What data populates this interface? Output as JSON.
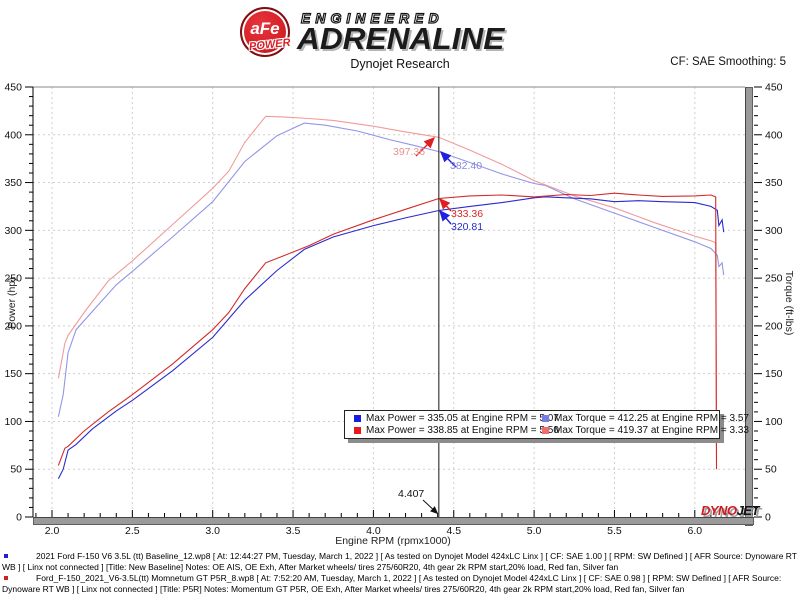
{
  "header": {
    "logo": {
      "badge": "aFe",
      "power": "POWER",
      "line1": "ENGINEERED",
      "line2": "ADRENALINE"
    },
    "title": "Dynojet Research",
    "smoothing": "CF: SAE Smoothing: 5"
  },
  "chart_data": {
    "type": "line",
    "xlabel": "Engine RPM (rpmx1000)",
    "ylabel_left": "Power (hp)",
    "ylabel_right": "Torque (ft-lbs)",
    "xlim": [
      1.88,
      6.31
    ],
    "ylim": [
      0,
      450
    ],
    "x_tick_major": 0.5,
    "x_tick_minor": 0.1,
    "y_tick_major": 50,
    "y_tick_minor": 10,
    "grid": "dotted",
    "cursor": {
      "rpm": 4.407,
      "label": "4.407"
    },
    "series": [
      {
        "name": "torque-baseline",
        "axis": "torque",
        "color": "#9495e8",
        "points": [
          [
            2.04,
            105
          ],
          [
            2.07,
            128
          ],
          [
            2.1,
            172
          ],
          [
            2.15,
            196
          ],
          [
            2.25,
            215
          ],
          [
            2.4,
            243
          ],
          [
            2.5,
            257
          ],
          [
            2.75,
            293
          ],
          [
            3.0,
            330
          ],
          [
            3.2,
            372
          ],
          [
            3.4,
            399
          ],
          [
            3.57,
            412.25
          ],
          [
            3.7,
            410
          ],
          [
            3.9,
            404
          ],
          [
            4.1,
            395
          ],
          [
            4.25,
            389
          ],
          [
            4.407,
            382.4
          ],
          [
            4.6,
            371
          ],
          [
            4.8,
            359
          ],
          [
            5.0,
            349
          ],
          [
            5.07,
            347
          ],
          [
            5.25,
            333
          ],
          [
            5.5,
            318
          ],
          [
            5.75,
            303
          ],
          [
            6.0,
            288
          ],
          [
            6.1,
            281
          ],
          [
            6.14,
            274
          ],
          [
            6.15,
            262
          ],
          [
            6.17,
            266
          ],
          [
            6.18,
            253
          ]
        ]
      },
      {
        "name": "torque-p5r",
        "axis": "torque",
        "color": "#f09b9b",
        "points": [
          [
            2.04,
            145
          ],
          [
            2.08,
            182
          ],
          [
            2.1,
            190
          ],
          [
            2.2,
            214
          ],
          [
            2.35,
            247
          ],
          [
            2.5,
            268
          ],
          [
            2.75,
            306
          ],
          [
            3.0,
            344
          ],
          [
            3.1,
            362
          ],
          [
            3.2,
            392
          ],
          [
            3.33,
            419.37
          ],
          [
            3.45,
            418.5
          ],
          [
            3.6,
            417
          ],
          [
            3.75,
            415
          ],
          [
            4.0,
            409
          ],
          [
            4.2,
            403
          ],
          [
            4.407,
            397.36
          ],
          [
            4.6,
            384
          ],
          [
            4.8,
            369
          ],
          [
            5.0,
            352
          ],
          [
            5.25,
            336
          ],
          [
            5.5,
            323.6
          ],
          [
            5.75,
            308
          ],
          [
            6.0,
            294
          ],
          [
            6.1,
            289
          ],
          [
            6.13,
            287
          ],
          [
            6.135,
            60
          ]
        ]
      },
      {
        "name": "power-baseline",
        "axis": "power",
        "color": "#2a2acd",
        "points": [
          [
            2.04,
            40
          ],
          [
            2.07,
            50
          ],
          [
            2.1,
            70
          ],
          [
            2.15,
            76
          ],
          [
            2.25,
            92
          ],
          [
            2.4,
            111
          ],
          [
            2.5,
            122
          ],
          [
            2.75,
            153
          ],
          [
            3.0,
            188
          ],
          [
            3.2,
            227
          ],
          [
            3.4,
            258
          ],
          [
            3.57,
            280
          ],
          [
            3.75,
            293
          ],
          [
            4.0,
            305
          ],
          [
            4.2,
            313
          ],
          [
            4.407,
            320.8
          ],
          [
            4.6,
            325
          ],
          [
            4.8,
            329
          ],
          [
            5.0,
            334
          ],
          [
            5.07,
            335.05
          ],
          [
            5.2,
            334
          ],
          [
            5.35,
            333
          ],
          [
            5.5,
            330
          ],
          [
            5.65,
            331
          ],
          [
            5.8,
            330
          ],
          [
            6.0,
            329
          ],
          [
            6.1,
            325
          ],
          [
            6.14,
            321
          ],
          [
            6.15,
            305
          ],
          [
            6.17,
            311
          ],
          [
            6.18,
            298
          ]
        ]
      },
      {
        "name": "power-p5r",
        "axis": "power",
        "color": "#d32a2a",
        "points": [
          [
            2.04,
            54
          ],
          [
            2.08,
            72
          ],
          [
            2.1,
            74
          ],
          [
            2.2,
            90
          ],
          [
            2.35,
            110
          ],
          [
            2.5,
            128
          ],
          [
            2.75,
            160
          ],
          [
            3.0,
            196
          ],
          [
            3.1,
            214
          ],
          [
            3.2,
            239
          ],
          [
            3.33,
            266
          ],
          [
            3.45,
            274
          ],
          [
            3.6,
            284
          ],
          [
            3.75,
            296
          ],
          [
            4.0,
            311
          ],
          [
            4.2,
            322
          ],
          [
            4.407,
            333.36
          ],
          [
            4.6,
            336
          ],
          [
            4.8,
            337
          ],
          [
            5.0,
            335
          ],
          [
            5.2,
            337.5
          ],
          [
            5.35,
            336.5
          ],
          [
            5.5,
            338.85
          ],
          [
            5.65,
            337
          ],
          [
            5.8,
            335.5
          ],
          [
            6.0,
            336
          ],
          [
            6.1,
            337
          ],
          [
            6.13,
            335
          ],
          [
            6.135,
            50
          ]
        ]
      }
    ]
  },
  "legend": {
    "items": [
      {
        "label": "Max Power = 335.05 at Engine RPM = 5.07",
        "color": "#1a1ae0"
      },
      {
        "label": "Max Torque = 412.25 at Engine RPM = 3.57",
        "color": "#7a7ae8"
      },
      {
        "label": "Max Power = 338.85 at Engine RPM = 5.50",
        "color": "#e81818"
      },
      {
        "label": "Max Torque = 419.37 at Engine RPM = 3.33",
        "color": "#f26c6c"
      }
    ]
  },
  "annotations": [
    {
      "label": "397.36",
      "color": "#e89090",
      "arrow_color": "#e02020",
      "from": [
        416,
        76
      ],
      "to": [
        434,
        58
      ]
    },
    {
      "label": "382.40",
      "color": "#8888dd",
      "arrow_color": "#2020e0",
      "from": [
        456,
        87
      ],
      "to": [
        441,
        72
      ]
    },
    {
      "label": "333.36",
      "color": "#d32a2a",
      "arrow_color": "#e02020",
      "from": [
        451,
        131
      ],
      "to": [
        440,
        119
      ]
    },
    {
      "label": "320.81",
      "color": "#2a2acd",
      "arrow_color": "#2020e0",
      "from": [
        451,
        144
      ],
      "to": [
        440,
        131
      ]
    }
  ],
  "cursor_arrow": {
    "from": [
      423,
      420
    ],
    "to": [
      437.5,
      433.5
    ],
    "color": "#111111"
  },
  "watermark": {
    "dyno": "DYNO",
    "jet": "JET"
  },
  "footers": [
    {
      "bullet_color": "#2222cc",
      "text": "2021 Ford F-150 V6 3.5L (tt) Baseline_12.wp8 [ At: 12:44:27 PM, Tuesday, March 1, 2022 ] [ As tested on Dynojet Model 424xLC Linx ] [ CF: SAE 1.00 ] [ RPM: SW Defined ] [ AFR Source: Dynoware RT WB ] [ Linx not connected ] [Title: New Baseline]  Notes: OE AIS, OE Exh, After Market wheels/ tires 275/60R20, 4th gear 2k RPM start,20% load, Red fan, Silver fan"
    },
    {
      "bullet_color": "#cc2222",
      "text": "Ford_F-150_2021_V6-3.5L(tt) Momnetum GT P5R_8.wp8 [ At: 7:52:20 AM, Tuesday, March 1, 2022 ] [ As tested on Dynojet Model 424xLC Linx ] [ CF: SAE 0.98 ] [ RPM: SW Defined ] [ AFR Source: Dynoware RT WB ] [ Linx not connected ] [Title: P5R]  Notes: Momentum GT  P5R, OE Exh, After Market wheels/ tires 275/60R20, 4th gear 2k RPM start,20% load, Red fan, Silver fan"
    }
  ]
}
